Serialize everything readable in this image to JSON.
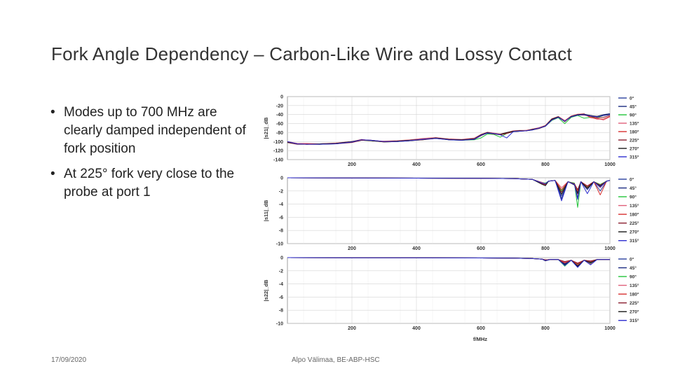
{
  "slide": {
    "title": "Fork Angle Dependency – Carbon-Like Wire and Lossy Contact",
    "bullets": [
      "Modes up to 700 MHz are clearly damped independent of fork position",
      "At 225° fork very close to the probe at port 1"
    ],
    "bullet_glyph": "•",
    "footer_date": "17/09/2020",
    "footer_author": "Alpo Välimaa, BE-ABP-HSC"
  },
  "chart_data": [
    {
      "type": "line",
      "ylabel": "|s21|_dB",
      "xlabel": "",
      "xlim": [
        0,
        1000
      ],
      "ylim": [
        -140,
        0
      ],
      "x_ticks": [
        200,
        400,
        600,
        800,
        1000
      ],
      "y_ticks": [
        0,
        -20,
        -40,
        -60,
        -80,
        -100,
        -120,
        -140
      ],
      "grid": true,
      "legend_position": "right",
      "legend": [
        "0°",
        "45°",
        "90°",
        "135°",
        "180°",
        "225°",
        "270°",
        "315°"
      ],
      "colors": [
        "#2a3f9e",
        "#1a2a80",
        "#22c43a",
        "#e0607a",
        "#d83030",
        "#8a1f30",
        "#1a1a1a",
        "#2e2ed0"
      ],
      "x": [
        0,
        30,
        60,
        100,
        150,
        200,
        230,
        260,
        300,
        340,
        380,
        420,
        460,
        500,
        540,
        580,
        600,
        620,
        640,
        660,
        680,
        700,
        720,
        740,
        760,
        780,
        800,
        820,
        840,
        860,
        880,
        900,
        920,
        940,
        960,
        980,
        1000
      ],
      "series": [
        {
          "values": [
            -100,
            -104,
            -105,
            -105,
            -104,
            -100,
            -96,
            -98,
            -100,
            -99,
            -97,
            -94,
            -92,
            -95,
            -96,
            -93,
            -85,
            -80,
            -82,
            -84,
            -80,
            -77,
            -76,
            -76,
            -73,
            -70,
            -65,
            -50,
            -45,
            -55,
            -44,
            -40,
            -39,
            -43,
            -44,
            -40,
            -38
          ]
        },
        {
          "values": [
            -101,
            -105,
            -106,
            -105,
            -104,
            -101,
            -96,
            -97,
            -100,
            -99,
            -98,
            -95,
            -93,
            -95,
            -97,
            -94,
            -86,
            -81,
            -82,
            -84,
            -81,
            -78,
            -76,
            -75,
            -73,
            -70,
            -66,
            -52,
            -46,
            -54,
            -45,
            -41,
            -40,
            -42,
            -45,
            -41,
            -39
          ]
        },
        {
          "values": [
            -102,
            -105,
            -105,
            -106,
            -105,
            -101,
            -97,
            -98,
            -101,
            -100,
            -98,
            -96,
            -92,
            -96,
            -97,
            -96,
            -92,
            -83,
            -84,
            -90,
            -82,
            -78,
            -77,
            -76,
            -74,
            -71,
            -66,
            -53,
            -47,
            -60,
            -46,
            -42,
            -48,
            -46,
            -47,
            -42,
            -40
          ]
        },
        {
          "values": [
            -100,
            -104,
            -104,
            -105,
            -103,
            -100,
            -95,
            -98,
            -99,
            -98,
            -96,
            -93,
            -91,
            -94,
            -95,
            -92,
            -84,
            -79,
            -81,
            -83,
            -80,
            -76,
            -75,
            -75,
            -72,
            -69,
            -64,
            -49,
            -44,
            -53,
            -43,
            -39,
            -38,
            -47,
            -48,
            -52,
            -45
          ]
        },
        {
          "values": [
            -101,
            -105,
            -105,
            -105,
            -104,
            -100,
            -96,
            -97,
            -100,
            -99,
            -97,
            -95,
            -92,
            -95,
            -96,
            -94,
            -86,
            -80,
            -82,
            -85,
            -81,
            -77,
            -76,
            -76,
            -73,
            -70,
            -65,
            -51,
            -45,
            -56,
            -44,
            -40,
            -40,
            -46,
            -50,
            -50,
            -44
          ]
        },
        {
          "values": [
            -102,
            -106,
            -106,
            -106,
            -105,
            -102,
            -97,
            -98,
            -101,
            -100,
            -98,
            -96,
            -93,
            -96,
            -97,
            -95,
            -87,
            -81,
            -83,
            -85,
            -82,
            -78,
            -77,
            -76,
            -74,
            -71,
            -66,
            -52,
            -46,
            -55,
            -45,
            -41,
            -41,
            -44,
            -47,
            -46,
            -42
          ]
        },
        {
          "values": [
            -101,
            -105,
            -106,
            -105,
            -104,
            -100,
            -96,
            -98,
            -100,
            -99,
            -97,
            -95,
            -92,
            -95,
            -96,
            -94,
            -85,
            -80,
            -82,
            -84,
            -80,
            -77,
            -76,
            -76,
            -73,
            -70,
            -65,
            -50,
            -45,
            -55,
            -44,
            -40,
            -39,
            -42,
            -44,
            -41,
            -39
          ]
        },
        {
          "values": [
            -100,
            -105,
            -106,
            -106,
            -105,
            -101,
            -96,
            -97,
            -100,
            -100,
            -98,
            -95,
            -93,
            -96,
            -97,
            -95,
            -86,
            -81,
            -82,
            -85,
            -92,
            -78,
            -77,
            -76,
            -74,
            -70,
            -66,
            -52,
            -46,
            -55,
            -45,
            -41,
            -40,
            -43,
            -45,
            -42,
            -40
          ]
        }
      ]
    },
    {
      "type": "line",
      "ylabel": "|s11|_dB",
      "xlabel": "",
      "xlim": [
        0,
        1000
      ],
      "ylim": [
        -10,
        0
      ],
      "x_ticks": [
        200,
        400,
        600,
        800,
        1000
      ],
      "y_ticks": [
        0,
        -2,
        -4,
        -6,
        -8,
        -10
      ],
      "grid": true,
      "legend_position": "right",
      "legend": [
        "0°",
        "45°",
        "90°",
        "135°",
        "180°",
        "225°",
        "270°",
        "315°"
      ],
      "colors": [
        "#2a3f9e",
        "#1a2a80",
        "#22c43a",
        "#e0607a",
        "#d83030",
        "#8a1f30",
        "#1a1a1a",
        "#2e2ed0"
      ],
      "x": [
        0,
        200,
        400,
        600,
        700,
        760,
        790,
        800,
        810,
        830,
        850,
        870,
        890,
        900,
        910,
        930,
        950,
        970,
        990,
        1000
      ],
      "series": [
        {
          "values": [
            0,
            -0.02,
            -0.05,
            -0.08,
            -0.12,
            -0.25,
            -0.9,
            -1.0,
            -0.5,
            -0.4,
            -2.8,
            -0.6,
            -0.9,
            -2.2,
            -0.6,
            -1.6,
            -0.6,
            -2.0,
            -0.5,
            -0.4
          ]
        },
        {
          "values": [
            0,
            -0.02,
            -0.05,
            -0.08,
            -0.12,
            -0.25,
            -0.8,
            -0.9,
            -0.5,
            -0.4,
            -3.2,
            -0.6,
            -1.0,
            -3.0,
            -0.6,
            -1.8,
            -0.6,
            -1.2,
            -0.5,
            -0.4
          ]
        },
        {
          "values": [
            0,
            -0.02,
            -0.05,
            -0.08,
            -0.12,
            -0.25,
            -0.7,
            -0.8,
            -0.5,
            -0.4,
            -2.0,
            -0.6,
            -0.8,
            -4.5,
            -0.6,
            -1.4,
            -0.6,
            -1.0,
            -0.5,
            -0.4
          ]
        },
        {
          "values": [
            0,
            -0.02,
            -0.05,
            -0.08,
            -0.12,
            -0.25,
            -0.7,
            -0.9,
            -0.5,
            -0.4,
            -1.5,
            -0.6,
            -0.9,
            -2.5,
            -0.6,
            -1.2,
            -0.6,
            -1.5,
            -0.5,
            -0.4
          ]
        },
        {
          "values": [
            0,
            -0.02,
            -0.05,
            -0.08,
            -0.12,
            -0.25,
            -0.8,
            -1.0,
            -0.5,
            -0.4,
            -1.8,
            -0.6,
            -1.0,
            -2.0,
            -0.6,
            -1.5,
            -0.6,
            -2.6,
            -0.5,
            -0.4
          ]
        },
        {
          "values": [
            0,
            -0.02,
            -0.05,
            -0.08,
            -0.12,
            -0.25,
            -0.9,
            -1.1,
            -0.5,
            -0.4,
            -2.2,
            -0.6,
            -0.9,
            -1.8,
            -0.6,
            -1.3,
            -0.6,
            -1.1,
            -0.5,
            -0.4
          ]
        },
        {
          "values": [
            0,
            -0.02,
            -0.05,
            -0.08,
            -0.12,
            -0.25,
            -1.0,
            -1.2,
            -0.5,
            -0.4,
            -2.5,
            -0.6,
            -1.1,
            -2.4,
            -0.6,
            -1.6,
            -0.6,
            -1.3,
            -0.5,
            -0.4
          ]
        },
        {
          "values": [
            0,
            -0.02,
            -0.05,
            -0.08,
            -0.12,
            -0.25,
            -0.8,
            -0.9,
            -0.5,
            -0.4,
            -3.5,
            -0.6,
            -1.0,
            -3.3,
            -0.6,
            -2.4,
            -0.6,
            -1.4,
            -0.5,
            -0.4
          ]
        }
      ]
    },
    {
      "type": "line",
      "ylabel": "|s22|_dB",
      "xlabel": "f/MHz",
      "xlim": [
        0,
        1000
      ],
      "ylim": [
        -10,
        0
      ],
      "x_ticks": [
        200,
        400,
        600,
        800,
        1000
      ],
      "y_ticks": [
        0,
        -2,
        -4,
        -6,
        -8,
        -10
      ],
      "grid": true,
      "legend_position": "right",
      "legend": [
        "0°",
        "45°",
        "90°",
        "135°",
        "180°",
        "225°",
        "270°",
        "315°"
      ],
      "colors": [
        "#2a3f9e",
        "#1a2a80",
        "#22c43a",
        "#e0607a",
        "#d83030",
        "#8a1f30",
        "#1a1a1a",
        "#2e2ed0"
      ],
      "x": [
        0,
        200,
        400,
        600,
        700,
        760,
        790,
        800,
        815,
        840,
        860,
        880,
        900,
        920,
        940,
        960,
        980,
        1000
      ],
      "series": [
        {
          "values": [
            0,
            -0.02,
            -0.03,
            -0.05,
            -0.08,
            -0.15,
            -0.25,
            -0.35,
            -0.3,
            -0.3,
            -0.9,
            -0.4,
            -1.2,
            -0.4,
            -0.6,
            -0.3,
            -0.3,
            -0.3
          ]
        },
        {
          "values": [
            0,
            -0.02,
            -0.03,
            -0.05,
            -0.08,
            -0.15,
            -0.25,
            -0.4,
            -0.3,
            -0.3,
            -1.0,
            -0.4,
            -1.4,
            -0.4,
            -0.7,
            -0.3,
            -0.3,
            -0.3
          ]
        },
        {
          "values": [
            0,
            -0.02,
            -0.03,
            -0.05,
            -0.08,
            -0.15,
            -0.25,
            -0.35,
            -0.3,
            -0.3,
            -1.3,
            -0.4,
            -1.0,
            -0.4,
            -0.9,
            -0.3,
            -0.3,
            -0.3
          ]
        },
        {
          "values": [
            0,
            -0.02,
            -0.03,
            -0.05,
            -0.08,
            -0.15,
            -0.25,
            -0.35,
            -0.3,
            -0.3,
            -0.7,
            -0.4,
            -0.8,
            -0.4,
            -1.0,
            -0.3,
            -0.3,
            -0.3
          ]
        },
        {
          "values": [
            0,
            -0.02,
            -0.03,
            -0.05,
            -0.08,
            -0.15,
            -0.25,
            -0.35,
            -0.3,
            -0.3,
            -0.8,
            -0.4,
            -1.1,
            -0.4,
            -0.6,
            -0.3,
            -0.3,
            -0.3
          ]
        },
        {
          "values": [
            0,
            -0.02,
            -0.03,
            -0.05,
            -0.08,
            -0.15,
            -0.25,
            -0.35,
            -0.3,
            -0.3,
            -0.6,
            -0.4,
            -0.9,
            -0.4,
            -0.5,
            -0.3,
            -0.3,
            -0.3
          ]
        },
        {
          "values": [
            0,
            -0.02,
            -0.03,
            -0.05,
            -0.08,
            -0.15,
            -0.25,
            -0.5,
            -0.3,
            -0.3,
            -1.1,
            -0.4,
            -1.3,
            -0.4,
            -0.8,
            -0.3,
            -0.3,
            -0.3
          ]
        },
        {
          "values": [
            0,
            -0.02,
            -0.03,
            -0.05,
            -0.08,
            -0.15,
            -0.25,
            -0.45,
            -0.3,
            -0.3,
            -1.2,
            -0.4,
            -1.5,
            -0.4,
            -1.1,
            -0.3,
            -0.3,
            -0.3
          ]
        }
      ]
    }
  ]
}
